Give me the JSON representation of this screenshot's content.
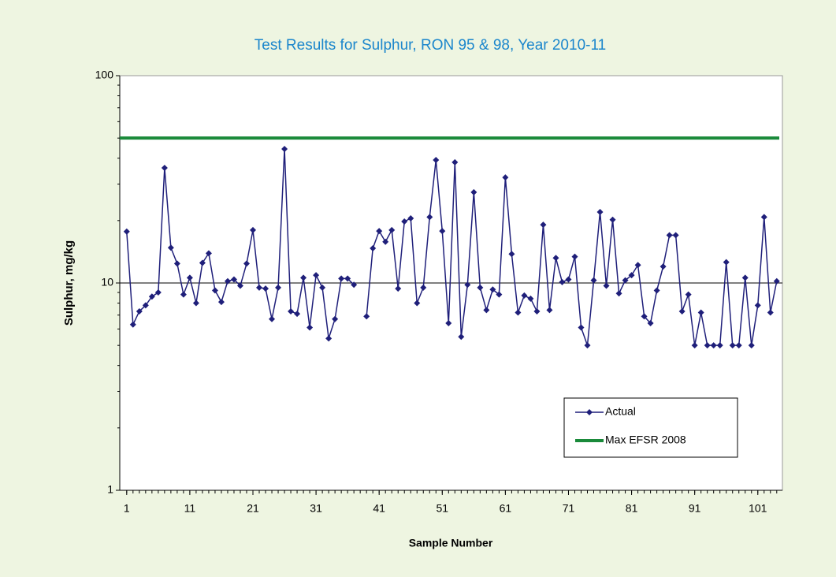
{
  "chart_data": {
    "type": "line",
    "title": "Test Results for Sulphur, RON 95 & 98, Year 2010-11",
    "x_label": "Sample Number",
    "y_label": "Sulphur, mg/kg",
    "x": [
      1,
      2,
      3,
      4,
      5,
      6,
      7,
      8,
      9,
      10,
      11,
      12,
      13,
      14,
      15,
      16,
      17,
      18,
      19,
      20,
      21,
      22,
      23,
      24,
      25,
      26,
      27,
      28,
      29,
      30,
      31,
      32,
      33,
      34,
      35,
      36,
      37,
      38,
      39,
      40,
      41,
      42,
      43,
      44,
      45,
      46,
      47,
      48,
      49,
      50,
      51,
      52,
      53,
      54,
      55,
      56,
      57,
      58,
      59,
      60,
      61,
      62,
      63,
      64,
      65,
      66,
      67,
      68,
      69,
      70,
      71,
      72,
      73,
      74,
      75,
      76,
      77,
      78,
      79,
      80,
      81,
      82,
      83,
      84,
      85,
      86,
      87,
      88,
      89,
      90,
      91,
      92,
      93,
      94,
      95,
      96,
      97,
      98,
      99,
      100,
      101,
      102,
      103,
      104
    ],
    "series": [
      {
        "name": "Actual",
        "color": "#1f1f7a",
        "marker": "diamond",
        "values": [
          17.7,
          6.3,
          7.3,
          7.8,
          8.6,
          9.0,
          35.9,
          14.8,
          12.4,
          8.8,
          10.6,
          8.0,
          12.5,
          13.9,
          9.2,
          8.1,
          10.2,
          10.4,
          9.7,
          12.4,
          18.0,
          9.5,
          9.4,
          6.7,
          9.5,
          44.3,
          7.3,
          7.1,
          10.6,
          6.1,
          10.9,
          9.5,
          5.4,
          6.7,
          10.5,
          10.5,
          9.8,
          null,
          6.9,
          14.7,
          17.8,
          15.8,
          18.0,
          9.4,
          19.8,
          20.5,
          8.0,
          9.5,
          20.8,
          39.2,
          17.8,
          6.4,
          38.2,
          5.5,
          9.8,
          27.4,
          9.5,
          7.4,
          9.3,
          8.8,
          32.3,
          13.8,
          7.2,
          8.7,
          8.4,
          7.3,
          19.1,
          7.4,
          13.2,
          10.1,
          10.4,
          13.4,
          6.1,
          5.0,
          10.3,
          22.0,
          9.7,
          20.2,
          8.9,
          10.3,
          10.9,
          12.2,
          6.9,
          6.4,
          9.2,
          12.0,
          17.0,
          17.0,
          7.3,
          8.8,
          5.0,
          7.2,
          5.0,
          5.0,
          5.0,
          12.6,
          5.0,
          5.0,
          10.6,
          5.0,
          7.8,
          20.8,
          7.2,
          10.2
        ]
      },
      {
        "name": "Max EFSR 2008",
        "color": "#1a8a3a",
        "value": 50
      }
    ],
    "xlim": [
      -0.1,
      104.9
    ],
    "xticks": [
      1,
      11,
      21,
      31,
      41,
      51,
      61,
      71,
      81,
      91,
      101
    ],
    "ylim": [
      1,
      100
    ],
    "yticks": [
      1,
      10,
      100
    ],
    "log_y": true,
    "grid": true,
    "legend": "lower-right"
  }
}
